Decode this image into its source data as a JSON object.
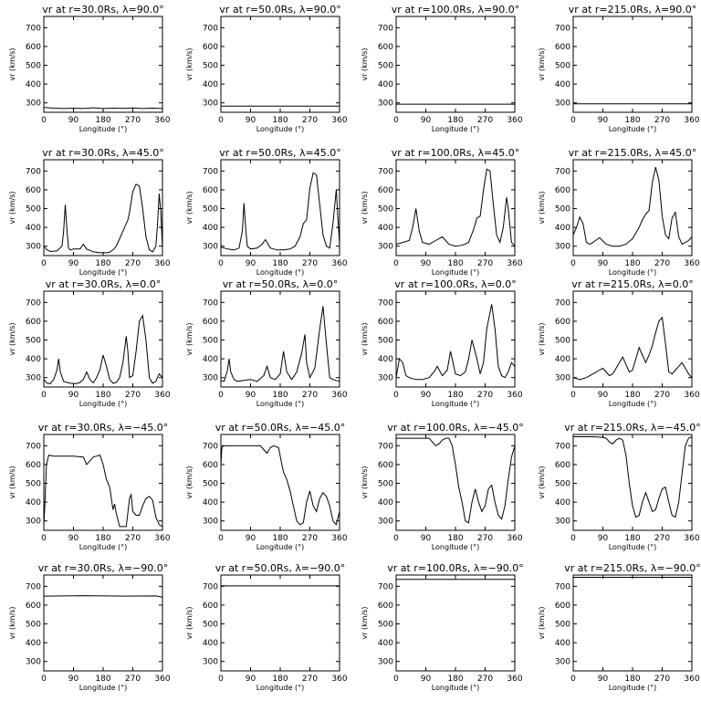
{
  "figure": {
    "xlabel": "Longitude (°)",
    "ylabel": "vr (km/s)"
  },
  "chart_data": [
    {
      "type": "line",
      "title": "vr at r=30.0Rs, λ=90.0°",
      "xlabel": "Longitude (°)",
      "ylabel": "vr (km/s)",
      "xlim": [
        0,
        360
      ],
      "ylim": [
        250,
        760
      ],
      "xticks": [
        0,
        90,
        180,
        270,
        360
      ],
      "yticks": [
        300,
        400,
        500,
        600,
        700
      ],
      "x": [
        0,
        30,
        60,
        90,
        120,
        150,
        180,
        210,
        240,
        270,
        300,
        330,
        360
      ],
      "y": [
        276,
        272,
        270,
        272,
        270,
        274,
        270,
        272,
        271,
        273,
        270,
        272,
        270
      ]
    },
    {
      "type": "line",
      "title": "vr at r=50.0Rs, λ=90.0°",
      "xlabel": "Longitude (°)",
      "ylabel": "vr (km/s)",
      "xlim": [
        0,
        360
      ],
      "ylim": [
        250,
        760
      ],
      "xticks": [
        0,
        90,
        180,
        270,
        360
      ],
      "yticks": [
        300,
        400,
        500,
        600,
        700
      ],
      "x": [
        0,
        360
      ],
      "y": [
        283,
        283
      ]
    },
    {
      "type": "line",
      "title": "vr at r=100.0Rs, λ=90.0°",
      "xlabel": "Longitude (°)",
      "ylabel": "vr (km/s)",
      "xlim": [
        0,
        360
      ],
      "ylim": [
        250,
        760
      ],
      "xticks": [
        0,
        90,
        180,
        270,
        360
      ],
      "yticks": [
        300,
        400,
        500,
        600,
        700
      ],
      "x": [
        0,
        360
      ],
      "y": [
        293,
        293
      ]
    },
    {
      "type": "line",
      "title": "vr at r=215.0Rs, λ=90.0°",
      "xlabel": "Longitude (°)",
      "ylabel": "vr (km/s)",
      "xlim": [
        0,
        360
      ],
      "ylim": [
        250,
        760
      ],
      "xticks": [
        0,
        90,
        180,
        270,
        360
      ],
      "yticks": [
        300,
        400,
        500,
        600,
        700
      ],
      "x": [
        0,
        360
      ],
      "y": [
        295,
        295
      ]
    },
    {
      "type": "line",
      "title": "vr at r=30.0Rs, λ=45.0°",
      "xlabel": "Longitude (°)",
      "ylabel": "vr (km/s)",
      "xlim": [
        0,
        360
      ],
      "ylim": [
        250,
        760
      ],
      "xticks": [
        0,
        90,
        180,
        270,
        360
      ],
      "yticks": [
        300,
        400,
        500,
        600,
        700
      ],
      "x": [
        0,
        10,
        20,
        40,
        55,
        60,
        65,
        70,
        75,
        80,
        90,
        110,
        120,
        130,
        150,
        170,
        190,
        200,
        210,
        220,
        230,
        245,
        255,
        260,
        270,
        280,
        290,
        300,
        310,
        320,
        330,
        340,
        345,
        350,
        355,
        360
      ],
      "y": [
        300,
        280,
        272,
        275,
        300,
        380,
        520,
        390,
        290,
        280,
        285,
        285,
        310,
        285,
        270,
        265,
        265,
        268,
        280,
        300,
        340,
        400,
        440,
        480,
        590,
        630,
        620,
        500,
        350,
        280,
        270,
        300,
        420,
        580,
        480,
        290
      ]
    },
    {
      "type": "line",
      "title": "vr at r=50.0Rs, λ=45.0°",
      "xlabel": "Longitude (°)",
      "ylabel": "vr (km/s)",
      "xlim": [
        0,
        360
      ],
      "ylim": [
        250,
        760
      ],
      "xticks": [
        0,
        90,
        180,
        270,
        360
      ],
      "yticks": [
        300,
        400,
        500,
        600,
        700
      ],
      "x": [
        0,
        20,
        40,
        55,
        65,
        70,
        75,
        80,
        90,
        110,
        125,
        135,
        150,
        170,
        190,
        210,
        225,
        240,
        250,
        260,
        270,
        280,
        290,
        300,
        310,
        320,
        330,
        340,
        350,
        355,
        360
      ],
      "y": [
        295,
        285,
        280,
        290,
        380,
        530,
        400,
        300,
        285,
        290,
        310,
        335,
        290,
        280,
        280,
        285,
        300,
        350,
        420,
        440,
        610,
        690,
        680,
        520,
        360,
        300,
        290,
        420,
        600,
        450,
        310
      ]
    },
    {
      "type": "line",
      "title": "vr at r=100.0Rs, λ=45.0°",
      "xlabel": "Longitude (°)",
      "ylabel": "vr (km/s)",
      "xlim": [
        0,
        360
      ],
      "ylim": [
        250,
        760
      ],
      "xticks": [
        0,
        90,
        180,
        270,
        360
      ],
      "yticks": [
        300,
        400,
        500,
        600,
        700
      ],
      "x": [
        0,
        20,
        40,
        50,
        60,
        70,
        80,
        100,
        120,
        140,
        160,
        180,
        200,
        220,
        235,
        245,
        255,
        265,
        275,
        285,
        295,
        305,
        315,
        325,
        335,
        340,
        350,
        360
      ],
      "y": [
        310,
        320,
        330,
        400,
        500,
        380,
        320,
        310,
        330,
        350,
        310,
        300,
        305,
        320,
        390,
        450,
        460,
        600,
        710,
        700,
        520,
        360,
        320,
        400,
        560,
        500,
        320,
        300
      ]
    },
    {
      "type": "line",
      "title": "vr at r=215.0Rs, λ=45.0°",
      "xlabel": "Longitude (°)",
      "ylabel": "vr (km/s)",
      "xlim": [
        0,
        360
      ],
      "ylim": [
        250,
        760
      ],
      "xticks": [
        0,
        90,
        180,
        270,
        360
      ],
      "yticks": [
        300,
        400,
        500,
        600,
        700
      ],
      "x": [
        0,
        10,
        20,
        30,
        40,
        50,
        60,
        80,
        100,
        120,
        140,
        160,
        180,
        200,
        210,
        220,
        230,
        240,
        250,
        260,
        270,
        280,
        290,
        300,
        310,
        320,
        330,
        340,
        350,
        360
      ],
      "y": [
        360,
        400,
        455,
        420,
        320,
        310,
        320,
        345,
        310,
        300,
        300,
        310,
        340,
        400,
        440,
        470,
        490,
        640,
        720,
        650,
        460,
        360,
        340,
        450,
        480,
        350,
        310,
        320,
        330,
        350
      ]
    },
    {
      "type": "line",
      "title": "vr at r=30.0Rs, λ=0.0°",
      "xlabel": "Longitude (°)",
      "ylabel": "vr (km/s)",
      "xlim": [
        0,
        360
      ],
      "ylim": [
        250,
        760
      ],
      "xticks": [
        0,
        90,
        180,
        270,
        360
      ],
      "yticks": [
        300,
        400,
        500,
        600,
        700
      ],
      "x": [
        0,
        10,
        20,
        30,
        40,
        45,
        50,
        60,
        80,
        100,
        110,
        120,
        130,
        140,
        150,
        160,
        170,
        180,
        190,
        200,
        210,
        220,
        230,
        240,
        250,
        255,
        260,
        270,
        280,
        290,
        300,
        310,
        320,
        330,
        340,
        350,
        360
      ],
      "y": [
        290,
        270,
        268,
        290,
        340,
        400,
        330,
        280,
        270,
        268,
        275,
        290,
        330,
        290,
        272,
        300,
        340,
        420,
        360,
        290,
        270,
        275,
        300,
        380,
        520,
        440,
        300,
        310,
        440,
        600,
        630,
        500,
        300,
        270,
        280,
        320,
        300
      ]
    },
    {
      "type": "line",
      "title": "vr at r=50.0Rs, λ=0.0°",
      "xlabel": "Longitude (°)",
      "ylabel": "vr (km/s)",
      "xlim": [
        0,
        360
      ],
      "ylim": [
        250,
        760
      ],
      "xticks": [
        0,
        90,
        180,
        270,
        360
      ],
      "yticks": [
        300,
        400,
        500,
        600,
        700
      ],
      "x": [
        0,
        10,
        20,
        25,
        30,
        40,
        50,
        70,
        90,
        110,
        130,
        140,
        150,
        165,
        180,
        190,
        200,
        215,
        230,
        245,
        255,
        260,
        270,
        285,
        300,
        310,
        320,
        330,
        340,
        350,
        360
      ],
      "y": [
        285,
        280,
        340,
        400,
        330,
        290,
        280,
        285,
        290,
        280,
        310,
        360,
        300,
        290,
        320,
        440,
        330,
        290,
        330,
        430,
        530,
        380,
        300,
        350,
        560,
        680,
        480,
        300,
        290,
        285,
        280
      ]
    },
    {
      "type": "line",
      "title": "vr at r=100.0Rs, λ=0.0°",
      "xlabel": "Longitude (°)",
      "ylabel": "vr (km/s)",
      "xlim": [
        0,
        360
      ],
      "ylim": [
        250,
        760
      ],
      "xticks": [
        0,
        90,
        180,
        270,
        360
      ],
      "yticks": [
        300,
        400,
        500,
        600,
        700
      ],
      "x": [
        0,
        10,
        20,
        30,
        40,
        60,
        80,
        100,
        115,
        125,
        140,
        155,
        165,
        180,
        195,
        210,
        220,
        230,
        245,
        255,
        265,
        275,
        290,
        300,
        310,
        320,
        330,
        340,
        350,
        360
      ],
      "y": [
        300,
        400,
        380,
        310,
        300,
        290,
        290,
        300,
        330,
        360,
        310,
        340,
        440,
        320,
        310,
        330,
        400,
        500,
        400,
        320,
        380,
        560,
        690,
        560,
        360,
        310,
        300,
        330,
        380,
        360
      ]
    },
    {
      "type": "line",
      "title": "vr at r=215.0Rs, λ=0.0°",
      "xlabel": "Longitude (°)",
      "ylabel": "vr (km/s)",
      "xlim": [
        0,
        360
      ],
      "ylim": [
        250,
        760
      ],
      "xticks": [
        0,
        90,
        180,
        270,
        360
      ],
      "yticks": [
        300,
        400,
        500,
        600,
        700
      ],
      "x": [
        0,
        20,
        40,
        60,
        80,
        90,
        100,
        110,
        120,
        140,
        150,
        160,
        170,
        180,
        190,
        200,
        210,
        220,
        230,
        240,
        250,
        260,
        270,
        280,
        290,
        300,
        310,
        320,
        330,
        340,
        350,
        360
      ],
      "y": [
        300,
        290,
        300,
        320,
        340,
        350,
        330,
        310,
        320,
        380,
        410,
        370,
        330,
        340,
        400,
        460,
        420,
        380,
        420,
        470,
        540,
        600,
        620,
        480,
        330,
        320,
        340,
        360,
        380,
        350,
        320,
        300
      ]
    },
    {
      "type": "line",
      "title": "vr at r=30.0Rs, λ=−45.0°",
      "xlabel": "Longitude (°)",
      "ylabel": "vr (km/s)",
      "xlim": [
        0,
        360
      ],
      "ylim": [
        250,
        760
      ],
      "xticks": [
        0,
        90,
        180,
        270,
        360
      ],
      "yticks": [
        300,
        400,
        500,
        600,
        700
      ],
      "x": [
        0,
        3,
        8,
        15,
        30,
        60,
        90,
        120,
        130,
        140,
        150,
        160,
        170,
        180,
        185,
        190,
        195,
        200,
        210,
        215,
        220,
        230,
        240,
        250,
        260,
        265,
        270,
        280,
        290,
        300,
        310,
        320,
        330,
        340,
        350,
        360
      ],
      "y": [
        280,
        380,
        600,
        650,
        645,
        645,
        645,
        640,
        600,
        620,
        640,
        645,
        650,
        600,
        560,
        520,
        500,
        480,
        360,
        390,
        340,
        270,
        270,
        270,
        420,
        440,
        350,
        330,
        330,
        380,
        420,
        430,
        410,
        320,
        280,
        270
      ]
    },
    {
      "type": "line",
      "title": "vr at r=50.0Rs, λ=−45.0°",
      "xlabel": "Longitude (°)",
      "ylabel": "vr (km/s)",
      "xlim": [
        0,
        360
      ],
      "ylim": [
        250,
        760
      ],
      "xticks": [
        0,
        90,
        180,
        270,
        360
      ],
      "yticks": [
        300,
        400,
        500,
        600,
        700
      ],
      "x": [
        0,
        3,
        8,
        20,
        60,
        100,
        120,
        130,
        140,
        150,
        160,
        175,
        185,
        190,
        200,
        210,
        220,
        230,
        240,
        250,
        260,
        270,
        280,
        290,
        300,
        310,
        320,
        330,
        340,
        350,
        360
      ],
      "y": [
        600,
        690,
        700,
        700,
        700,
        700,
        700,
        680,
        660,
        690,
        700,
        690,
        600,
        560,
        520,
        460,
        380,
        300,
        280,
        290,
        400,
        460,
        380,
        350,
        420,
        450,
        430,
        380,
        300,
        280,
        350
      ]
    },
    {
      "type": "line",
      "title": "vr at r=100.0Rs, λ=−45.0°",
      "xlabel": "Longitude (°)",
      "ylabel": "vr (km/s)",
      "xlim": [
        0,
        360
      ],
      "ylim": [
        250,
        760
      ],
      "xticks": [
        0,
        90,
        180,
        270,
        360
      ],
      "yticks": [
        300,
        400,
        500,
        600,
        700
      ],
      "x": [
        0,
        30,
        60,
        90,
        100,
        110,
        120,
        130,
        140,
        150,
        160,
        170,
        180,
        190,
        200,
        210,
        220,
        230,
        240,
        250,
        260,
        270,
        280,
        290,
        300,
        310,
        320,
        330,
        340,
        350,
        360
      ],
      "y": [
        740,
        740,
        740,
        740,
        740,
        720,
        700,
        710,
        730,
        740,
        740,
        700,
        600,
        480,
        400,
        300,
        290,
        400,
        470,
        400,
        350,
        380,
        470,
        490,
        400,
        330,
        310,
        380,
        520,
        640,
        700
      ]
    },
    {
      "type": "line",
      "title": "vr at r=215.0Rs, λ=−45.0°",
      "xlabel": "Longitude (°)",
      "ylabel": "vr (km/s)",
      "xlim": [
        0,
        360
      ],
      "ylim": [
        250,
        760
      ],
      "xticks": [
        0,
        90,
        180,
        270,
        360
      ],
      "yticks": [
        300,
        400,
        500,
        600,
        700
      ],
      "x": [
        0,
        30,
        60,
        90,
        100,
        110,
        120,
        130,
        140,
        150,
        160,
        170,
        180,
        190,
        200,
        210,
        220,
        230,
        240,
        250,
        260,
        270,
        280,
        290,
        300,
        310,
        320,
        330,
        340,
        350,
        360
      ],
      "y": [
        748,
        748,
        748,
        745,
        740,
        720,
        710,
        730,
        740,
        730,
        650,
        500,
        380,
        320,
        330,
        400,
        450,
        400,
        350,
        360,
        420,
        470,
        480,
        400,
        330,
        320,
        400,
        550,
        700,
        740,
        748
      ]
    },
    {
      "type": "line",
      "title": "vr at r=30.0Rs, λ=−90.0°",
      "xlabel": "Longitude (°)",
      "ylabel": "vr (km/s)",
      "xlim": [
        0,
        360
      ],
      "ylim": [
        250,
        760
      ],
      "xticks": [
        0,
        90,
        180,
        270,
        360
      ],
      "yticks": [
        300,
        400,
        500,
        600,
        700
      ],
      "x": [
        0,
        120,
        240,
        340,
        360
      ],
      "y": [
        648,
        650,
        648,
        649,
        642
      ]
    },
    {
      "type": "line",
      "title": "vr at r=50.0Rs, λ=−90.0°",
      "xlabel": "Longitude (°)",
      "ylabel": "vr (km/s)",
      "xlim": [
        0,
        360
      ],
      "ylim": [
        250,
        760
      ],
      "xticks": [
        0,
        90,
        180,
        270,
        360
      ],
      "yticks": [
        300,
        400,
        500,
        600,
        700
      ],
      "x": [
        0,
        360
      ],
      "y": [
        702,
        702
      ]
    },
    {
      "type": "line",
      "title": "vr at r=100.0Rs, λ=−90.0°",
      "xlabel": "Longitude (°)",
      "ylabel": "vr (km/s)",
      "xlim": [
        0,
        360
      ],
      "ylim": [
        250,
        760
      ],
      "xticks": [
        0,
        90,
        180,
        270,
        360
      ],
      "yticks": [
        300,
        400,
        500,
        600,
        700
      ],
      "x": [
        0,
        360
      ],
      "y": [
        737,
        737
      ]
    },
    {
      "type": "line",
      "title": "vr at r=215.0Rs, λ=−90.0°",
      "xlabel": "Longitude (°)",
      "ylabel": "vr (km/s)",
      "xlim": [
        0,
        360
      ],
      "ylim": [
        250,
        760
      ],
      "xticks": [
        0,
        90,
        180,
        270,
        360
      ],
      "yticks": [
        300,
        400,
        500,
        600,
        700
      ],
      "x": [
        0,
        360
      ],
      "y": [
        748,
        748
      ]
    }
  ]
}
